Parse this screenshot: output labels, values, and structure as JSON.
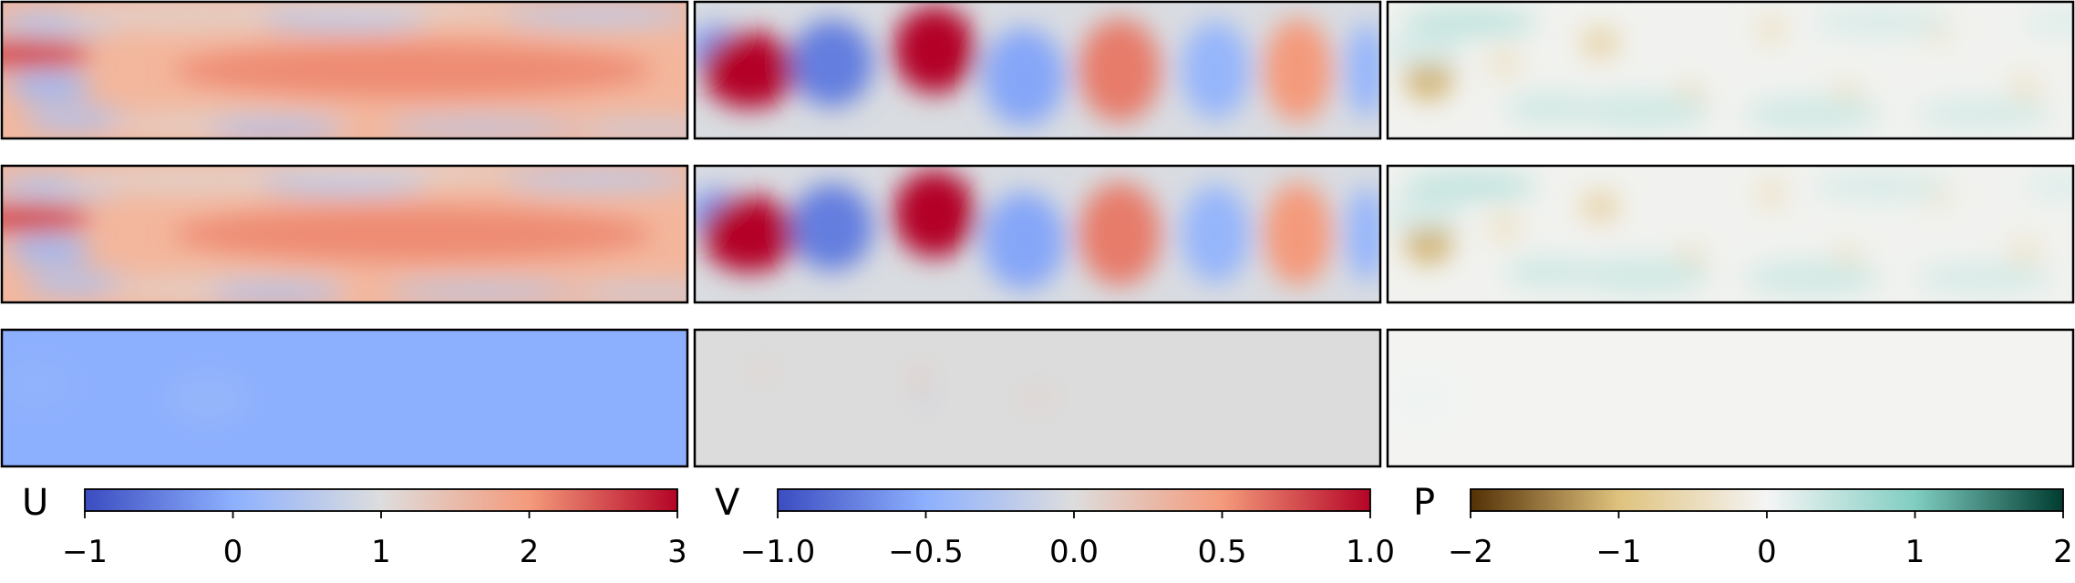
{
  "chart_data": {
    "type": "heatmap",
    "grid_rows": 3,
    "grid_cols": 3,
    "columns": [
      {
        "variable": "U",
        "colormap": "coolwarm",
        "colors": [
          "#3b4cc0",
          "#8db0fe",
          "#dddddd",
          "#f49a7b",
          "#b40426"
        ],
        "range": [
          -1,
          3
        ],
        "ticks": [
          -1,
          0,
          1,
          2,
          3
        ],
        "tick_labels": [
          "−1",
          "0",
          "1",
          "2",
          "3"
        ],
        "row_backgrounds": [
          "#f3b79d",
          "#f3b79d",
          "#8db0fe"
        ],
        "blobs": [
          [
            [
              0.04,
              0.38,
              0.09,
              0.1,
              2.6
            ],
            [
              0.07,
              0.62,
              0.06,
              0.1,
              0.2
            ],
            [
              0.09,
              0.15,
              0.1,
              0.09,
              0.5
            ],
            [
              0.11,
              0.86,
              0.08,
              0.08,
              0.4
            ],
            [
              0.27,
              0.1,
              0.18,
              0.1,
              1.2
            ],
            [
              0.33,
              0.9,
              0.18,
              0.09,
              1.2
            ],
            [
              0.5,
              0.12,
              0.12,
              0.08,
              0.3
            ],
            [
              0.56,
              0.05,
              0.22,
              0.06,
              1.0
            ],
            [
              0.4,
              0.93,
              0.1,
              0.06,
              0.3
            ],
            [
              0.7,
              0.92,
              0.14,
              0.06,
              0.5
            ],
            [
              0.87,
              0.1,
              0.14,
              0.08,
              0.6
            ],
            [
              0.95,
              0.93,
              0.12,
              0.06,
              0.7
            ],
            [
              0.6,
              0.5,
              0.35,
              0.2,
              2.1
            ]
          ],
          [
            [
              0.04,
              0.38,
              0.09,
              0.1,
              2.6
            ],
            [
              0.07,
              0.62,
              0.06,
              0.1,
              0.2
            ],
            [
              0.09,
              0.15,
              0.1,
              0.09,
              0.5
            ],
            [
              0.11,
              0.86,
              0.08,
              0.08,
              0.4
            ],
            [
              0.27,
              0.1,
              0.18,
              0.1,
              1.2
            ],
            [
              0.33,
              0.9,
              0.18,
              0.09,
              1.2
            ],
            [
              0.5,
              0.12,
              0.12,
              0.08,
              0.3
            ],
            [
              0.56,
              0.05,
              0.22,
              0.06,
              1.0
            ],
            [
              0.4,
              0.93,
              0.1,
              0.06,
              0.3
            ],
            [
              0.7,
              0.92,
              0.14,
              0.06,
              0.5
            ],
            [
              0.87,
              0.1,
              0.14,
              0.08,
              0.6
            ],
            [
              0.95,
              0.93,
              0.12,
              0.06,
              0.7
            ],
            [
              0.6,
              0.5,
              0.35,
              0.2,
              2.1
            ]
          ],
          [
            [
              0.05,
              0.4,
              0.06,
              0.2,
              0.05
            ],
            [
              0.3,
              0.5,
              0.06,
              0.2,
              0.1
            ]
          ]
        ]
      },
      {
        "variable": "V",
        "colormap": "coolwarm",
        "colors": [
          "#3b4cc0",
          "#8db0fe",
          "#dddddd",
          "#f49a7b",
          "#b40426"
        ],
        "range": [
          -1,
          1
        ],
        "ticks": [
          -1,
          -0.5,
          0,
          0.5,
          1
        ],
        "tick_labels": [
          "−1.0",
          "−0.5",
          "0.0",
          "0.5",
          "1.0"
        ],
        "row_backgrounds": [
          "#d9dce1",
          "#d9dce1",
          "#dcdcdc"
        ],
        "blobs": [
          [
            [
              0.03,
              0.35,
              0.04,
              0.18,
              -0.6
            ],
            [
              0.08,
              0.5,
              0.07,
              0.28,
              1.0
            ],
            [
              0.2,
              0.45,
              0.06,
              0.32,
              -0.75
            ],
            [
              0.35,
              0.35,
              0.06,
              0.32,
              1.0
            ],
            [
              0.48,
              0.55,
              0.06,
              0.36,
              -0.55
            ],
            [
              0.62,
              0.5,
              0.06,
              0.38,
              0.6
            ],
            [
              0.76,
              0.5,
              0.05,
              0.36,
              -0.45
            ],
            [
              0.88,
              0.5,
              0.05,
              0.38,
              0.5
            ],
            [
              0.98,
              0.5,
              0.03,
              0.35,
              -0.45
            ]
          ],
          [
            [
              0.03,
              0.35,
              0.04,
              0.18,
              -0.6
            ],
            [
              0.08,
              0.5,
              0.07,
              0.28,
              1.0
            ],
            [
              0.2,
              0.45,
              0.06,
              0.32,
              -0.75
            ],
            [
              0.35,
              0.35,
              0.06,
              0.32,
              1.0
            ],
            [
              0.48,
              0.55,
              0.06,
              0.36,
              -0.55
            ],
            [
              0.62,
              0.5,
              0.06,
              0.38,
              0.6
            ],
            [
              0.76,
              0.5,
              0.05,
              0.36,
              -0.45
            ],
            [
              0.88,
              0.5,
              0.05,
              0.38,
              0.5
            ],
            [
              0.98,
              0.5,
              0.03,
              0.35,
              -0.45
            ]
          ],
          [
            [
              0.1,
              0.3,
              0.02,
              0.08,
              0.06
            ],
            [
              0.33,
              0.4,
              0.01,
              0.15,
              0.15
            ],
            [
              0.34,
              0.5,
              0.01,
              0.12,
              -0.08
            ],
            [
              0.5,
              0.5,
              0.03,
              0.1,
              0.05
            ]
          ]
        ]
      },
      {
        "variable": "P",
        "colormap": "BrBG",
        "colors": [
          "#543005",
          "#dfc27d",
          "#f5f5f5",
          "#80cdc1",
          "#003c30"
        ],
        "range": [
          -2,
          2
        ],
        "ticks": [
          -2,
          -1,
          0,
          1,
          2
        ],
        "tick_labels": [
          "−2",
          "−1",
          "0",
          "1",
          "2"
        ],
        "row_backgrounds": [
          "#f1f2ef",
          "#f1f2ef",
          "#f3f4f2"
        ],
        "blobs": [
          [
            [
              0.06,
              0.55,
              0.035,
              0.17,
              -1.1
            ],
            [
              0.05,
              0.35,
              0.06,
              0.12,
              0.25
            ],
            [
              0.17,
              0.45,
              0.025,
              0.12,
              -0.35
            ],
            [
              0.31,
              0.3,
              0.03,
              0.12,
              -0.6
            ],
            [
              0.44,
              0.72,
              0.025,
              0.13,
              -0.45
            ],
            [
              0.56,
              0.2,
              0.02,
              0.12,
              -0.4
            ],
            [
              0.67,
              0.7,
              0.025,
              0.12,
              -0.35
            ],
            [
              0.8,
              0.2,
              0.025,
              0.12,
              -0.3
            ],
            [
              0.93,
              0.65,
              0.025,
              0.14,
              -0.3
            ],
            [
              0.12,
              0.15,
              0.1,
              0.1,
              0.45
            ],
            [
              0.37,
              0.8,
              0.1,
              0.14,
              0.3
            ],
            [
              0.62,
              0.82,
              0.1,
              0.13,
              0.3
            ],
            [
              0.72,
              0.15,
              0.1,
              0.1,
              0.25
            ],
            [
              0.87,
              0.82,
              0.1,
              0.12,
              0.25
            ],
            [
              0.98,
              0.15,
              0.05,
              0.1,
              0.2
            ],
            [
              0.24,
              0.78,
              0.07,
              0.12,
              0.3
            ]
          ],
          [
            [
              0.06,
              0.55,
              0.035,
              0.17,
              -1.1
            ],
            [
              0.05,
              0.35,
              0.06,
              0.12,
              0.25
            ],
            [
              0.17,
              0.45,
              0.025,
              0.12,
              -0.35
            ],
            [
              0.31,
              0.3,
              0.03,
              0.12,
              -0.6
            ],
            [
              0.44,
              0.72,
              0.025,
              0.13,
              -0.45
            ],
            [
              0.56,
              0.2,
              0.02,
              0.12,
              -0.4
            ],
            [
              0.67,
              0.7,
              0.025,
              0.12,
              -0.35
            ],
            [
              0.8,
              0.2,
              0.025,
              0.12,
              -0.3
            ],
            [
              0.93,
              0.65,
              0.025,
              0.14,
              -0.3
            ],
            [
              0.12,
              0.15,
              0.1,
              0.1,
              0.45
            ],
            [
              0.37,
              0.8,
              0.1,
              0.14,
              0.3
            ],
            [
              0.62,
              0.82,
              0.1,
              0.13,
              0.3
            ],
            [
              0.72,
              0.15,
              0.1,
              0.1,
              0.25
            ],
            [
              0.87,
              0.82,
              0.1,
              0.12,
              0.25
            ],
            [
              0.98,
              0.15,
              0.05,
              0.1,
              0.2
            ],
            [
              0.24,
              0.78,
              0.07,
              0.12,
              0.3
            ]
          ],
          [
            [
              0.05,
              0.5,
              0.05,
              0.2,
              0.05
            ]
          ]
        ]
      }
    ]
  }
}
